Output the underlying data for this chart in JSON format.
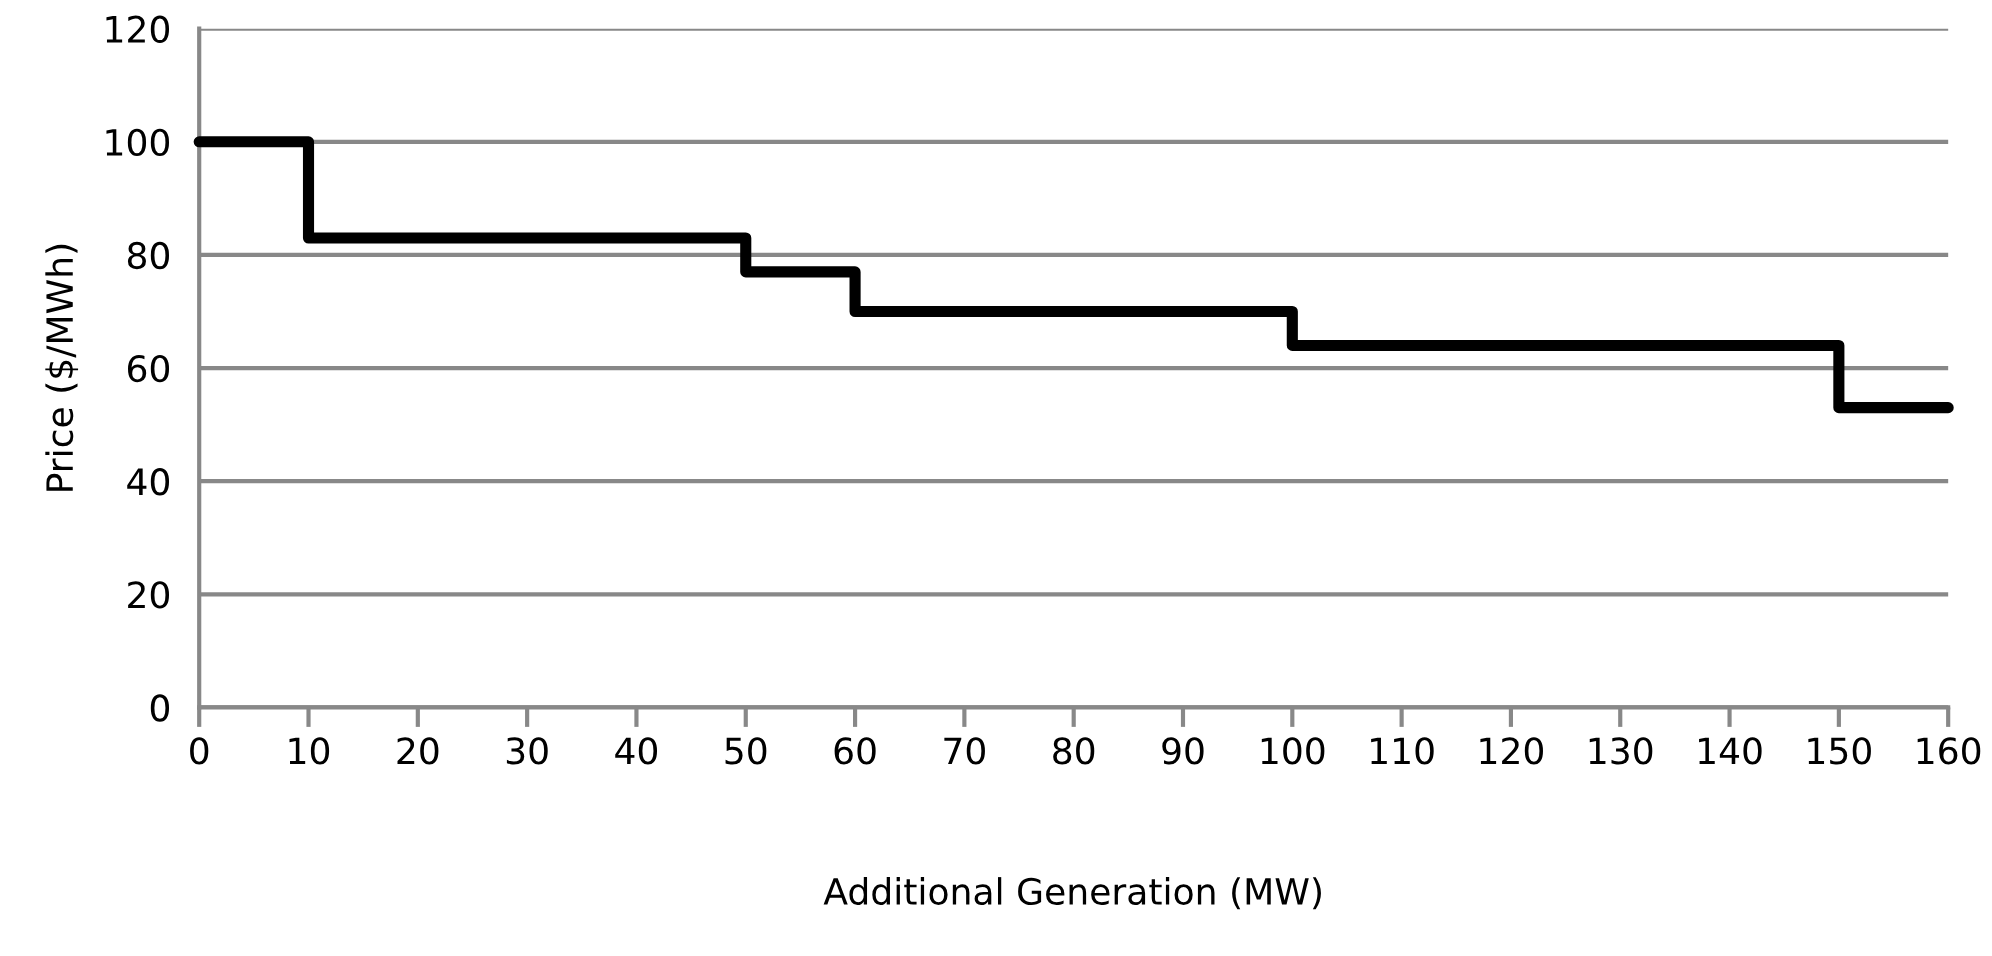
{
  "chart_data": {
    "type": "step",
    "xlabel": "Additional Generation (MW)",
    "ylabel": "Price ($/MWh)",
    "x": [
      0,
      10,
      50,
      60,
      100,
      150,
      160
    ],
    "series": [
      {
        "color": "#000000",
        "values": [
          100,
          83,
          77,
          70,
          64,
          53,
          53
        ]
      }
    ],
    "xlim": [
      0,
      160
    ],
    "ylim": [
      0,
      120
    ],
    "xticks": [
      0,
      10,
      20,
      30,
      40,
      50,
      60,
      70,
      80,
      90,
      100,
      110,
      120,
      130,
      140,
      150,
      160
    ],
    "yticks": [
      0,
      20,
      40,
      60,
      80,
      100,
      120
    ],
    "grid": "y",
    "marker": "none",
    "line_style": "solid"
  }
}
